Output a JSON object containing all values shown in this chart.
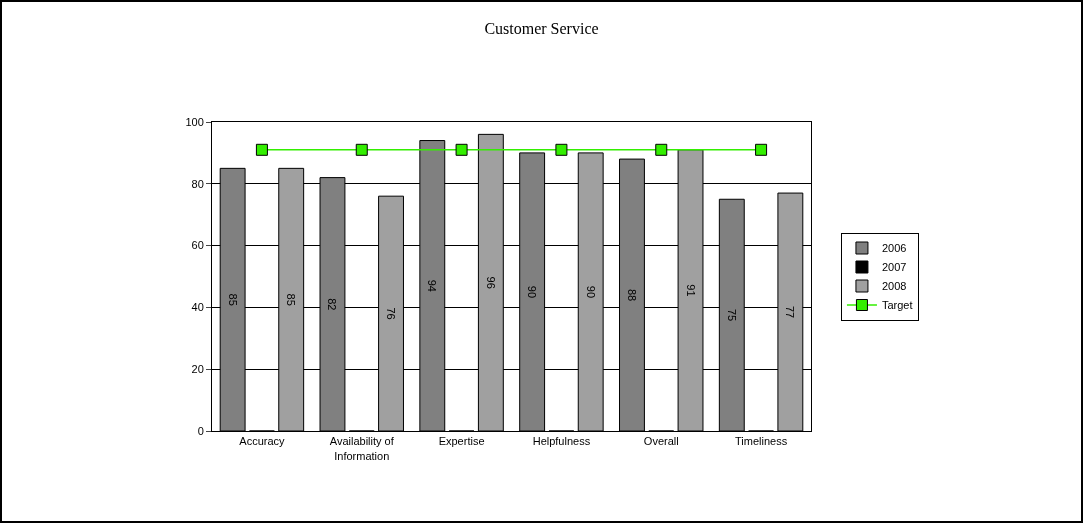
{
  "chart_data": {
    "type": "bar",
    "title": "Customer Service",
    "categories": [
      "Accuracy",
      "Availability of Information",
      "Expertise",
      "Helpfulness",
      "Overall",
      "Timeliness"
    ],
    "series": [
      {
        "name": "2006",
        "color": "#808080",
        "values": [
          85,
          82,
          94,
          90,
          88,
          75
        ],
        "value_labels": [
          "85",
          "82",
          "94",
          "90",
          "88",
          "75"
        ]
      },
      {
        "name": "2007",
        "color": "#000000",
        "values": [
          0,
          0,
          0,
          0,
          0,
          0
        ]
      },
      {
        "name": "2008",
        "color": "#a0a0a0",
        "values": [
          85,
          76,
          96,
          90,
          91,
          77
        ],
        "value_labels": [
          "85",
          "76",
          "96",
          "90",
          "91",
          "77"
        ]
      },
      {
        "name": "Target",
        "type": "line",
        "color": "#33ee00",
        "values": [
          91,
          91,
          91,
          91,
          91,
          91
        ]
      }
    ],
    "ylim": [
      0,
      100
    ],
    "yticks": [
      0,
      20,
      40,
      60,
      80,
      100
    ],
    "grid": "y",
    "legend": "right",
    "marker": "square"
  }
}
